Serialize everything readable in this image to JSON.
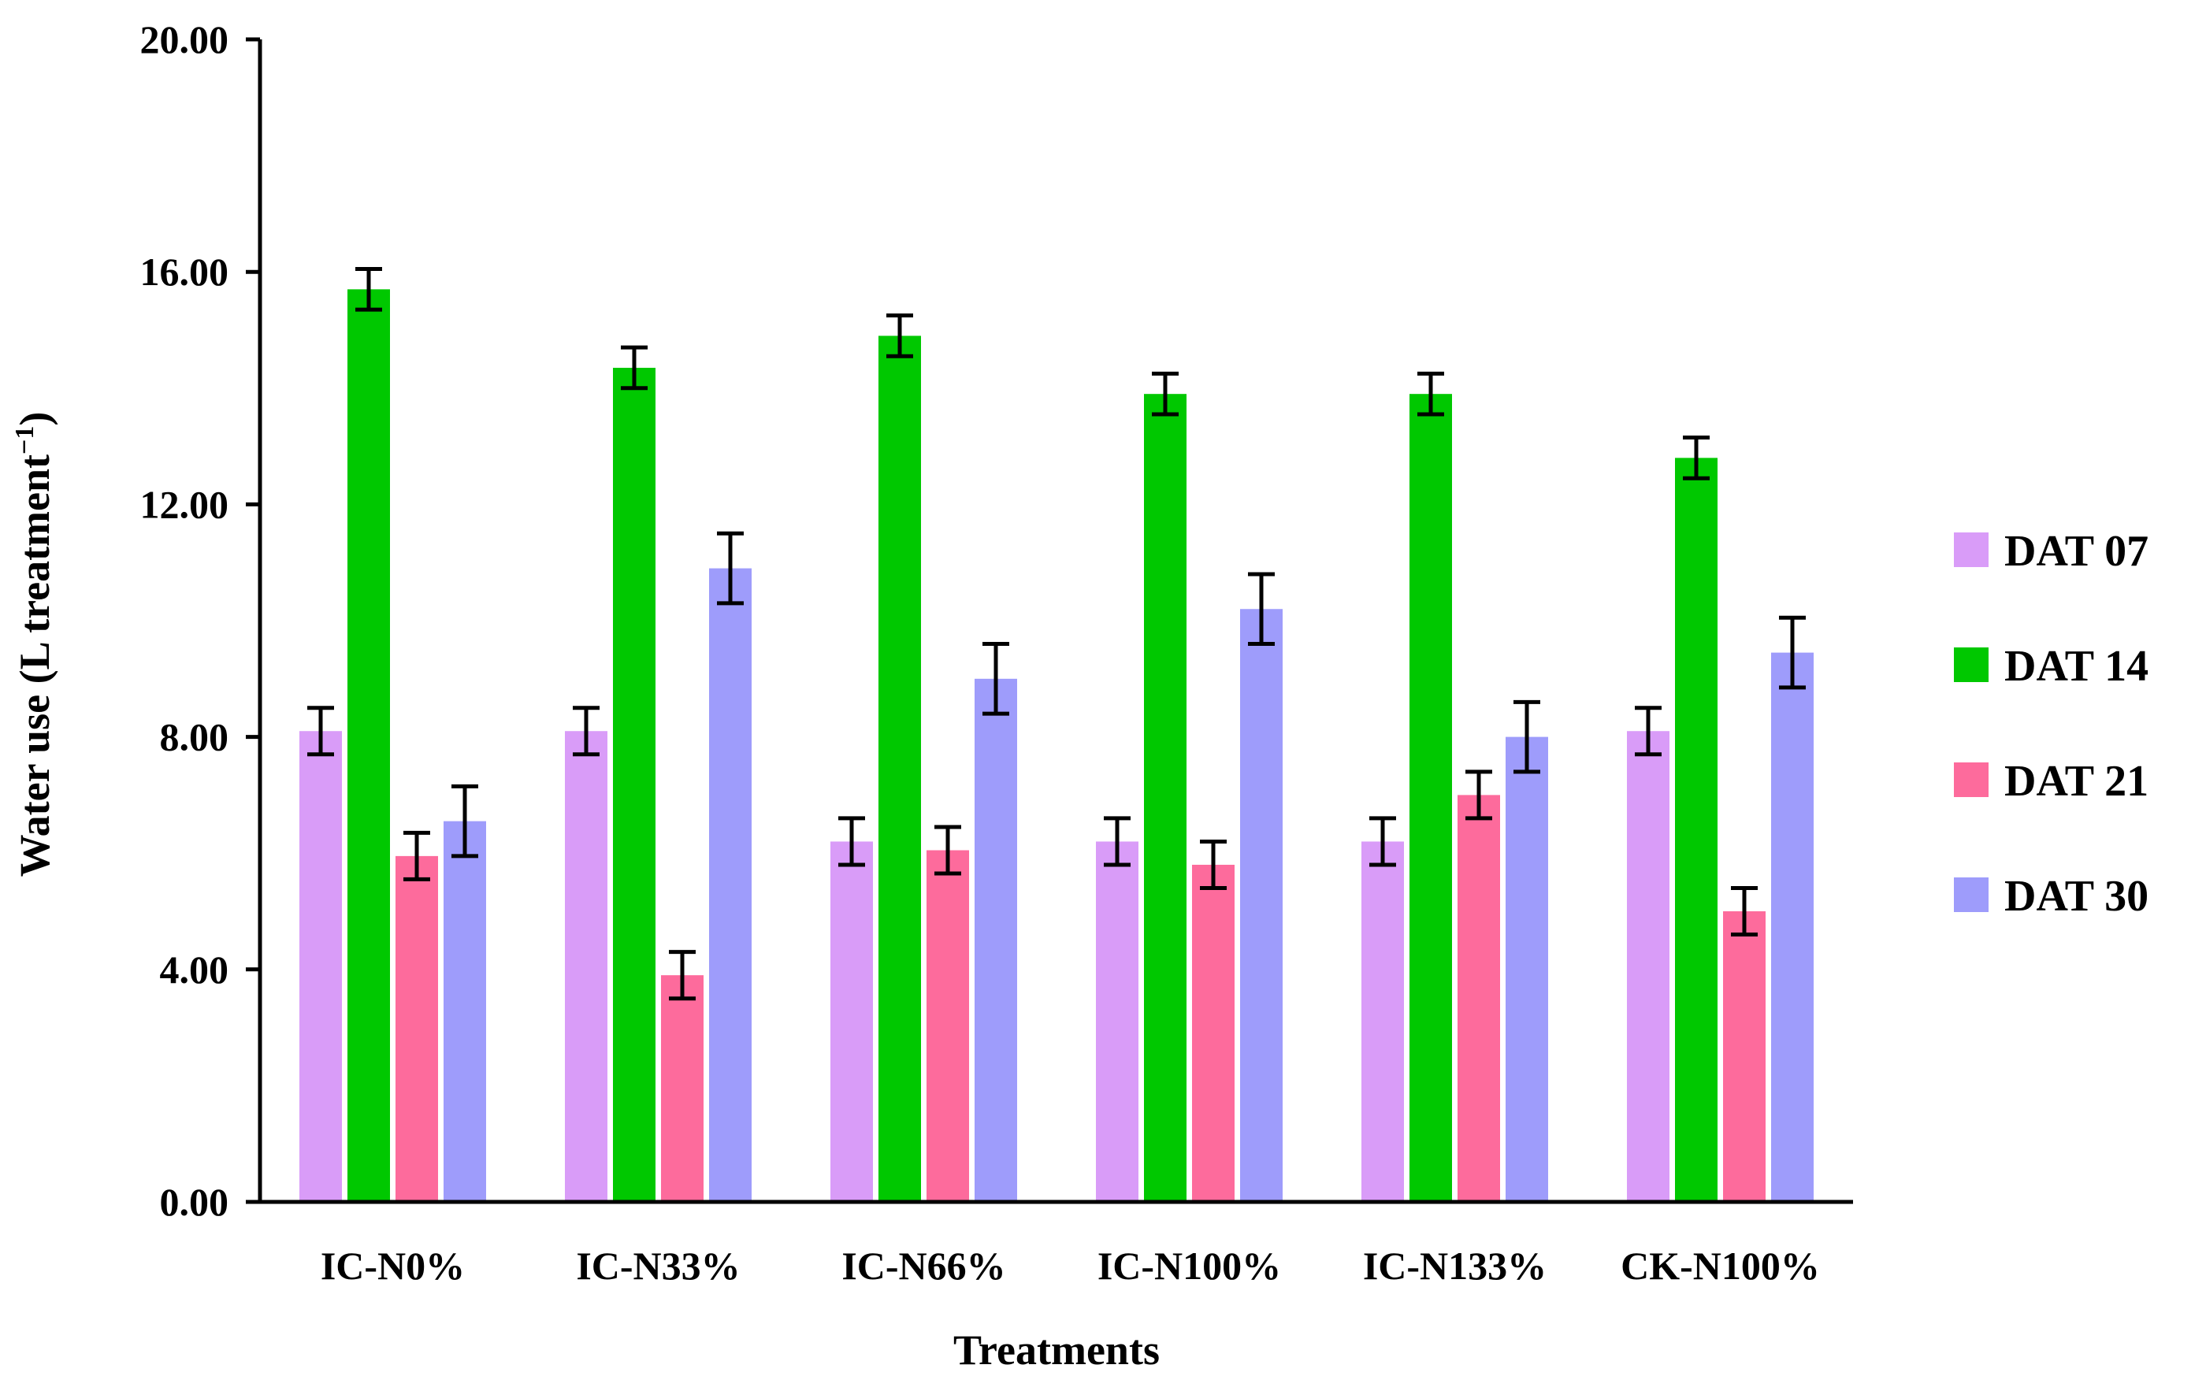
{
  "chart_data": {
    "type": "bar",
    "title": "",
    "xlabel": "Treatments",
    "ylabel": "Water use (L treatment",
    "ylabel_superscript": "−1",
    "ylabel_close": ")",
    "ylim": [
      0,
      20
    ],
    "yticks": [
      0,
      4,
      8,
      12,
      16,
      20
    ],
    "ytick_labels": [
      "0.00",
      "4.00",
      "8.00",
      "12.00",
      "16.00",
      "20.00"
    ],
    "grid": false,
    "legend_position": "right",
    "categories": [
      "IC-N0%",
      "IC-N33%",
      "IC-N66%",
      "IC-N100%",
      "IC-N133%",
      "CK-N100%"
    ],
    "series": [
      {
        "name": "DAT 07",
        "color": "#d99cf8",
        "values": [
          8.1,
          8.1,
          6.2,
          6.2,
          6.2,
          8.1
        ],
        "errors": [
          0.4,
          0.4,
          0.4,
          0.4,
          0.4,
          0.4
        ]
      },
      {
        "name": "DAT 14",
        "color": "#00c800",
        "values": [
          15.7,
          14.35,
          14.9,
          13.9,
          13.9,
          12.8
        ],
        "errors": [
          0.35,
          0.35,
          0.35,
          0.35,
          0.35,
          0.35
        ]
      },
      {
        "name": "DAT 21",
        "color": "#fd6b9c",
        "values": [
          5.95,
          3.9,
          6.05,
          5.8,
          7.0,
          5.0
        ],
        "errors": [
          0.4,
          0.4,
          0.4,
          0.4,
          0.4,
          0.4
        ]
      },
      {
        "name": "DAT 30",
        "color": "#9e9cfb",
        "values": [
          6.55,
          10.9,
          9.0,
          10.2,
          8.0,
          9.45
        ],
        "errors": [
          0.6,
          0.6,
          0.6,
          0.6,
          0.6,
          0.6
        ]
      }
    ]
  }
}
